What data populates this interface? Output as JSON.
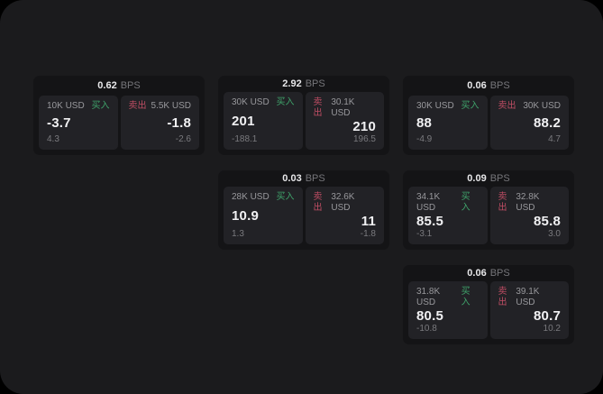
{
  "labels": {
    "bps": "BPS",
    "buy": "买入",
    "sell": "卖出"
  },
  "colors": {
    "buy_green": "#3fa26a",
    "sell_red": "#bf4d64",
    "page_bg": "#1b1b1d",
    "card_bg": "#141416",
    "panel_bg": "#222226"
  },
  "cards": [
    {
      "bps": "0.62",
      "buy": {
        "amount": "10K USD",
        "price": "-3.7",
        "delta": "4.3"
      },
      "sell": {
        "amount": "5.5K USD",
        "price": "-1.8",
        "delta": "-2.6"
      }
    },
    {
      "bps": "2.92",
      "buy": {
        "amount": "30K USD",
        "price": "201",
        "delta": "-188.1"
      },
      "sell": {
        "amount": "30.1K USD",
        "price": "210",
        "delta": "196.5"
      }
    },
    {
      "bps": "0.06",
      "buy": {
        "amount": "30K USD",
        "price": "88",
        "delta": "-4.9"
      },
      "sell": {
        "amount": "30K USD",
        "price": "88.2",
        "delta": "4.7"
      }
    },
    {
      "bps": "0.03",
      "buy": {
        "amount": "28K USD",
        "price": "10.9",
        "delta": "1.3"
      },
      "sell": {
        "amount": "32.6K USD",
        "price": "11",
        "delta": "-1.8"
      }
    },
    {
      "bps": "0.09",
      "buy": {
        "amount": "34.1K USD",
        "price": "85.5",
        "delta": "-3.1"
      },
      "sell": {
        "amount": "32.8K USD",
        "price": "85.8",
        "delta": "3.0"
      }
    },
    {
      "bps": "0.06",
      "buy": {
        "amount": "31.8K USD",
        "price": "80.5",
        "delta": "-10.8"
      },
      "sell": {
        "amount": "39.1K USD",
        "price": "80.7",
        "delta": "10.2"
      }
    }
  ]
}
